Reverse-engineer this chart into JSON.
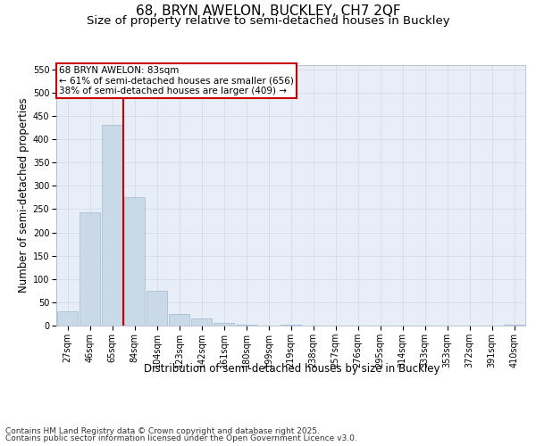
{
  "title_line1": "68, BRYN AWELON, BUCKLEY, CH7 2QF",
  "title_line2": "Size of property relative to semi-detached houses in Buckley",
  "xlabel": "Distribution of semi-detached houses by size in Buckley",
  "ylabel": "Number of semi-detached properties",
  "categories": [
    "27sqm",
    "46sqm",
    "65sqm",
    "84sqm",
    "104sqm",
    "123sqm",
    "142sqm",
    "161sqm",
    "180sqm",
    "199sqm",
    "219sqm",
    "238sqm",
    "257sqm",
    "276sqm",
    "295sqm",
    "314sqm",
    "333sqm",
    "353sqm",
    "372sqm",
    "391sqm",
    "410sqm"
  ],
  "values": [
    30,
    243,
    430,
    275,
    75,
    25,
    15,
    5,
    1,
    0,
    1,
    0,
    0,
    0,
    0,
    0,
    0,
    0,
    0,
    0,
    1
  ],
  "bar_color": "#c9d9e8",
  "bar_edge_color": "#a0b8cc",
  "vline_color": "#cc0000",
  "annotation_title": "68 BRYN AWELON: 83sqm",
  "annotation_line1": "← 61% of semi-detached houses are smaller (656)",
  "annotation_line2": "38% of semi-detached houses are larger (409) →",
  "annotation_box_color": "#cc0000",
  "ylim": [
    0,
    560
  ],
  "yticks": [
    0,
    50,
    100,
    150,
    200,
    250,
    300,
    350,
    400,
    450,
    500,
    550
  ],
  "grid_color": "#d0d8e8",
  "background_color": "#e8eef8",
  "footer_line1": "Contains HM Land Registry data © Crown copyright and database right 2025.",
  "footer_line2": "Contains public sector information licensed under the Open Government Licence v3.0.",
  "title_fontsize": 11,
  "subtitle_fontsize": 9.5,
  "axis_label_fontsize": 8.5,
  "tick_fontsize": 7,
  "annotation_fontsize": 7.5,
  "footer_fontsize": 6.5
}
